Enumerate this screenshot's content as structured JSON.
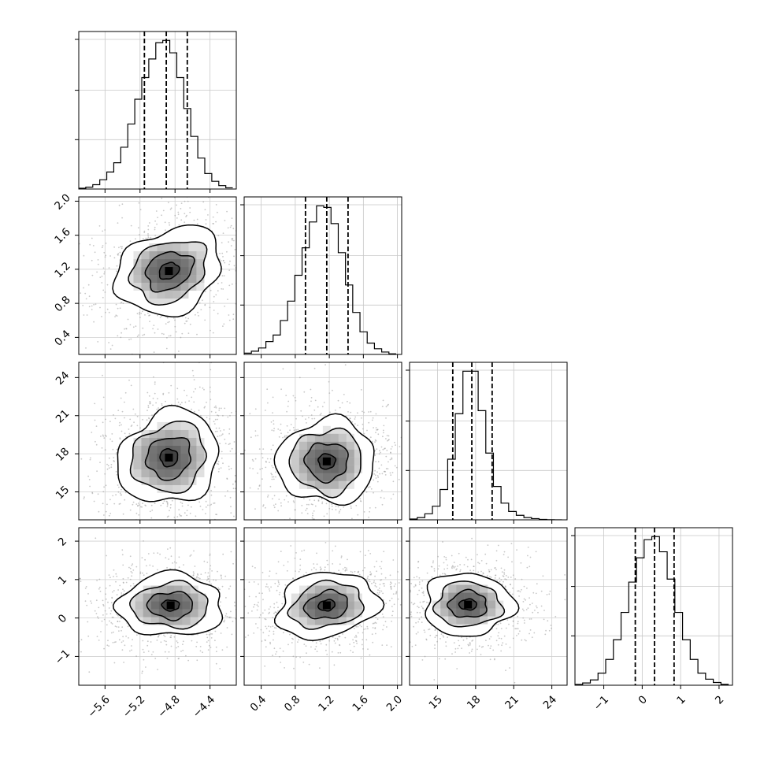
{
  "chart_data": {
    "type": "corner",
    "title": "",
    "grid": true,
    "parameters": [
      {
        "index": 0,
        "range": [
          -5.9,
          -4.1
        ],
        "ticks": [
          -5.6,
          -5.2,
          -4.8,
          -4.4
        ],
        "tick_labels": [
          "−5.6",
          "−5.2",
          "−4.8",
          "−4.4"
        ],
        "quantiles": [
          -5.15,
          -4.9,
          -4.66
        ],
        "hist_bins": [
          -5.9,
          -5.82,
          -5.74,
          -5.66,
          -5.58,
          -5.5,
          -5.42,
          -5.34,
          -5.26,
          -5.18,
          -5.1,
          -5.02,
          -4.94,
          -4.86,
          -4.78,
          -4.7,
          -4.62,
          -4.54,
          -4.46,
          -4.38,
          -4.3,
          -4.22,
          -4.14
        ],
        "hist_counts": [
          0.5,
          1.2,
          2.8,
          6.0,
          11.0,
          17.0,
          27.0,
          42.0,
          58.0,
          72.0,
          84.0,
          94.5,
          96.0,
          88.0,
          72.0,
          52.0,
          34.0,
          20.0,
          10.0,
          5.0,
          2.2,
          0.8
        ]
      },
      {
        "index": 1,
        "range": [
          0.2,
          2.05
        ],
        "ticks": [
          0.4,
          0.8,
          1.2,
          1.6,
          2.0
        ],
        "tick_labels": [
          "0.4",
          "0.8",
          "1.2",
          "1.6",
          "2.0"
        ],
        "quantiles": [
          0.92,
          1.17,
          1.42
        ],
        "hist_bins": [
          0.2,
          0.285,
          0.37,
          0.455,
          0.54,
          0.625,
          0.71,
          0.795,
          0.88,
          0.965,
          1.05,
          1.135,
          1.22,
          1.305,
          1.39,
          1.475,
          1.56,
          1.645,
          1.73,
          1.815,
          1.9,
          1.985
        ],
        "hist_counts": [
          0.8,
          2.0,
          4.0,
          8.0,
          12.0,
          21.0,
          33.0,
          49.0,
          66.0,
          82.0,
          92.0,
          91.0,
          81.0,
          63.0,
          43.0,
          26.0,
          14.0,
          7.0,
          3.5,
          1.5,
          0.4
        ]
      },
      {
        "index": 2,
        "range": [
          12.8,
          25.2
        ],
        "ticks": [
          15,
          18,
          21,
          24
        ],
        "tick_labels": [
          "15",
          "18",
          "21",
          "24"
        ],
        "quantiles": [
          16.2,
          17.7,
          19.3
        ],
        "hist_bins": [
          12.8,
          13.4,
          14.0,
          14.6,
          15.2,
          15.8,
          16.4,
          17.0,
          17.6,
          18.2,
          18.8,
          19.4,
          20.0,
          20.6,
          21.2,
          21.8,
          22.4,
          23.0,
          23.6,
          24.2,
          24.8
        ],
        "hist_counts": [
          0.5,
          1.5,
          4.0,
          9.0,
          20.0,
          40.0,
          70.0,
          98.0,
          98.0,
          72.0,
          44.0,
          22.0,
          11.0,
          5.5,
          3.0,
          1.5,
          0.8,
          0.3,
          0.1,
          0.0
        ]
      },
      {
        "index": 3,
        "range": [
          -1.75,
          2.35
        ],
        "ticks": [
          -1,
          0,
          1,
          2
        ],
        "tick_labels": [
          "−1",
          "0",
          "1",
          "2"
        ],
        "quantiles": [
          -0.18,
          0.32,
          0.83
        ],
        "hist_bins": [
          -1.75,
          -1.55,
          -1.35,
          -1.15,
          -0.95,
          -0.75,
          -0.55,
          -0.35,
          -0.15,
          0.05,
          0.25,
          0.45,
          0.65,
          0.85,
          1.05,
          1.25,
          1.45,
          1.65,
          1.85,
          2.05,
          2.25
        ],
        "hist_counts": [
          0.5,
          1.5,
          3.5,
          8.0,
          17.0,
          30.0,
          48.0,
          68.0,
          84.0,
          96.0,
          98.0,
          88.0,
          70.0,
          48.0,
          30.0,
          17.0,
          8.0,
          4.0,
          1.8,
          0.6
        ]
      }
    ],
    "joint": [
      {
        "x": 0,
        "y": 1,
        "center": [
          -4.87,
          1.18
        ],
        "levels": [
          [
            0.12,
            0.09
          ],
          [
            0.28,
            0.21
          ],
          [
            0.45,
            0.34
          ],
          [
            0.63,
            0.48
          ]
        ],
        "tilt": -0.45
      },
      {
        "x": 0,
        "y": 2,
        "center": [
          -4.87,
          17.7
        ],
        "levels": [
          [
            0.1,
            0.7
          ],
          [
            0.26,
            1.6
          ],
          [
            0.44,
            2.6
          ],
          [
            0.6,
            3.5
          ]
        ],
        "tilt": -0.55
      },
      {
        "x": 1,
        "y": 2,
        "center": [
          1.17,
          17.4
        ],
        "levels": [
          [
            0.1,
            0.6
          ],
          [
            0.25,
            1.5
          ],
          [
            0.42,
            2.5
          ],
          [
            0.58,
            3.3
          ]
        ],
        "tilt": -0.05
      },
      {
        "x": 0,
        "y": 3,
        "center": [
          -4.85,
          0.33
        ],
        "levels": [
          [
            0.1,
            0.14
          ],
          [
            0.26,
            0.35
          ],
          [
            0.44,
            0.58
          ],
          [
            0.6,
            0.82
          ]
        ],
        "tilt": 0.0
      },
      {
        "x": 1,
        "y": 3,
        "center": [
          1.17,
          0.33
        ],
        "levels": [
          [
            0.1,
            0.14
          ],
          [
            0.26,
            0.35
          ],
          [
            0.43,
            0.58
          ],
          [
            0.6,
            0.84
          ]
        ],
        "tilt": -0.2
      },
      {
        "x": 2,
        "y": 3,
        "center": [
          17.4,
          0.35
        ],
        "levels": [
          [
            0.7,
            0.14
          ],
          [
            1.5,
            0.35
          ],
          [
            2.6,
            0.58
          ],
          [
            3.5,
            0.82
          ]
        ],
        "tilt": 0.0
      }
    ]
  }
}
